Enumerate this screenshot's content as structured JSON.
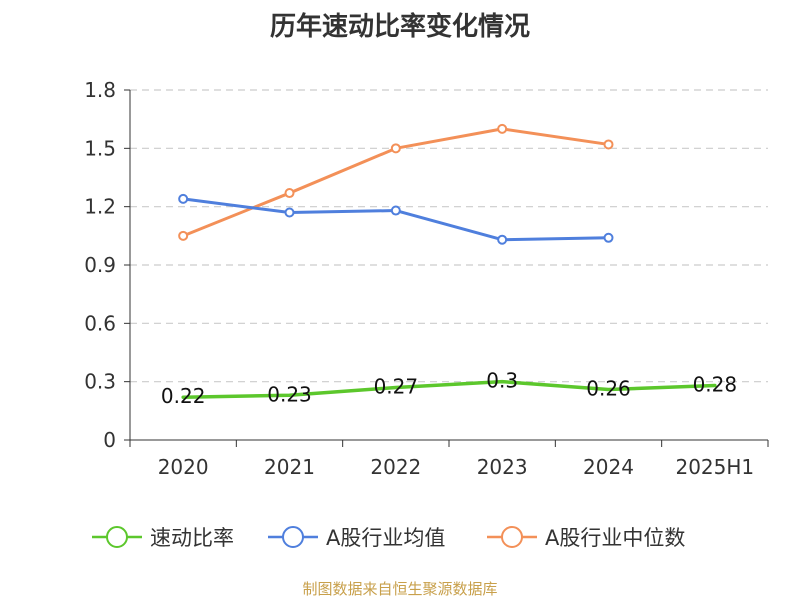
{
  "header": {
    "title": "历年速动比率变化情况"
  },
  "footer": {
    "source": "制图数据来自恒生聚源数据库"
  },
  "chart_data": {
    "type": "line",
    "title": "历年速动比率变化情况",
    "xlabel": "",
    "ylabel": "",
    "categories": [
      "2020",
      "2021",
      "2022",
      "2023",
      "2024",
      "2025H1"
    ],
    "yticks": [
      "0",
      "0.3",
      "0.6",
      "0.9",
      "1.2",
      "1.5",
      "1.8"
    ],
    "ylim": [
      0,
      1.8
    ],
    "grid": true,
    "legend_position": "bottom",
    "series": [
      {
        "name": "速动比率",
        "color": "#5cc72c",
        "values": [
          0.22,
          0.23,
          0.27,
          0.3,
          0.26,
          0.28
        ],
        "labels": [
          "0.22",
          "0.23",
          "0.27",
          "0.3",
          "0.26",
          "0.28"
        ],
        "markers": false
      },
      {
        "name": "A股行业均值",
        "color": "#4f7fdd",
        "values": [
          1.24,
          1.17,
          1.18,
          1.03,
          1.04,
          null
        ],
        "markers": true
      },
      {
        "name": "A股行业中位数",
        "color": "#f39058",
        "values": [
          1.05,
          1.27,
          1.5,
          1.6,
          1.52,
          null
        ],
        "markers": true
      }
    ]
  }
}
